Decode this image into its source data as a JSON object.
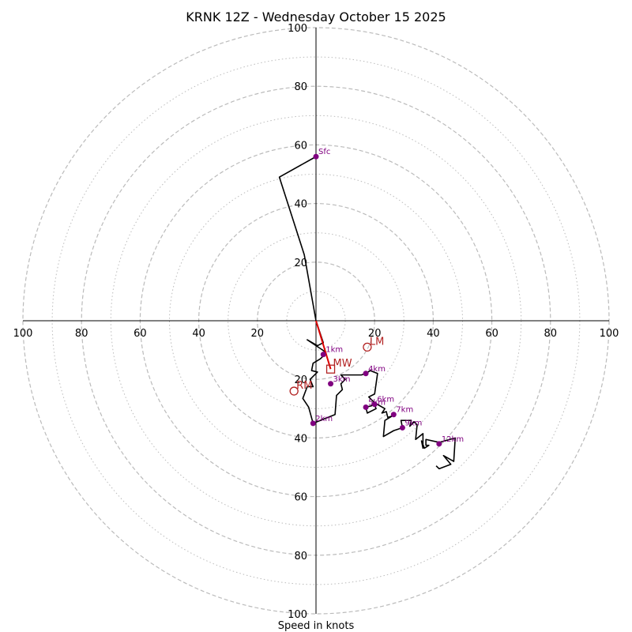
{
  "chart_data": {
    "type": "hodograph",
    "title": "KRNK 12Z - Wednesday October 15 2025",
    "xlabel": "Speed in knots",
    "range_knots": 100,
    "dashed_rings": [
      20,
      40,
      60,
      80,
      100
    ],
    "dotted_rings": [
      10,
      30,
      50,
      70,
      90
    ],
    "tick_labels": {
      "x_left": [
        "100",
        "80",
        "60",
        "40",
        "20"
      ],
      "x_right": [
        "20",
        "40",
        "60",
        "80",
        "100"
      ],
      "y_up": [
        "20",
        "40",
        "60",
        "80",
        "100"
      ],
      "y_down": [
        "20",
        "40",
        "60",
        "80",
        "100"
      ]
    },
    "colors": {
      "trace": "#000000",
      "height_marker": "#800080",
      "motion": "#b22222",
      "mean_wind_vector": "#dd0000",
      "rings": "#bbbbbb"
    },
    "trace": [
      [
        0.0,
        56.0
      ],
      [
        -12.5,
        49.0
      ],
      [
        -4.0,
        22.5
      ],
      [
        0.0,
        0.0
      ],
      [
        2.5,
        -7.5
      ],
      [
        0.5,
        -8.5
      ],
      [
        -3.0,
        -6.5
      ],
      [
        1.5,
        -9.5
      ],
      [
        3.0,
        -10.5
      ],
      [
        2.5,
        -12.0
      ],
      [
        1.5,
        -13.0
      ],
      [
        -1.0,
        -14.5
      ],
      [
        -1.5,
        -17.0
      ],
      [
        0.5,
        -17.5
      ],
      [
        -2.0,
        -20.0
      ],
      [
        -1.0,
        -22.5
      ],
      [
        -3.0,
        -22.5
      ],
      [
        -4.5,
        -26.5
      ],
      [
        -2.5,
        -29.5
      ],
      [
        -1.0,
        -35.0
      ],
      [
        6.5,
        -32.0
      ],
      [
        7.0,
        -25.5
      ],
      [
        9.0,
        -23.5
      ],
      [
        8.5,
        -21.5
      ],
      [
        10.0,
        -20.0
      ],
      [
        8.5,
        -18.5
      ],
      [
        10.5,
        -18.5
      ],
      [
        12.5,
        -18.5
      ],
      [
        15.5,
        -18.5
      ],
      [
        17.0,
        -18.0
      ],
      [
        18.5,
        -17.0
      ],
      [
        21.0,
        -18.0
      ],
      [
        20.0,
        -25.0
      ],
      [
        18.0,
        -26.0
      ],
      [
        19.5,
        -27.5
      ],
      [
        20.5,
        -30.0
      ],
      [
        17.5,
        -31.5
      ],
      [
        17.0,
        -29.5
      ],
      [
        19.0,
        -29.0
      ],
      [
        20.0,
        -28.0
      ],
      [
        23.5,
        -30.0
      ],
      [
        22.5,
        -31.5
      ],
      [
        24.0,
        -31.0
      ],
      [
        24.5,
        -33.0
      ],
      [
        26.0,
        -32.5
      ],
      [
        23.5,
        -34.0
      ],
      [
        23.0,
        -39.5
      ],
      [
        26.5,
        -37.5
      ],
      [
        29.5,
        -36.5
      ],
      [
        29.0,
        -34.0
      ],
      [
        30.5,
        -34.0
      ],
      [
        32.5,
        -34.0
      ],
      [
        32.0,
        -36.0
      ],
      [
        33.5,
        -34.5
      ],
      [
        34.5,
        -35.5
      ],
      [
        34.0,
        -40.5
      ],
      [
        36.5,
        -38.5
      ],
      [
        36.5,
        -43.5
      ],
      [
        36.0,
        -41.0
      ],
      [
        37.0,
        -43.5
      ],
      [
        38.5,
        -42.5
      ],
      [
        37.5,
        -42.5
      ],
      [
        37.5,
        -40.5
      ],
      [
        42.0,
        -41.5
      ],
      [
        47.5,
        -40.0
      ],
      [
        47.0,
        -48.0
      ],
      [
        43.5,
        -46.0
      ],
      [
        46.0,
        -49.0
      ],
      [
        42.0,
        -50.5
      ],
      [
        41.0,
        -49.5
      ]
    ],
    "height_markers": [
      {
        "label": "Sfc",
        "u": 0.0,
        "v": 56.0
      },
      {
        "label": "1km",
        "u": 2.5,
        "v": -11.5
      },
      {
        "label": "2km",
        "u": -1.0,
        "v": -35.0
      },
      {
        "label": "3km",
        "u": 5.0,
        "v": -21.5
      },
      {
        "label": "4km",
        "u": 17.0,
        "v": -18.0
      },
      {
        "label": "5km",
        "u": 17.0,
        "v": -29.5
      },
      {
        "label": "6km",
        "u": 20.0,
        "v": -28.5
      },
      {
        "label": "7km",
        "u": 26.5,
        "v": -32.0
      },
      {
        "label": "9km",
        "u": 29.5,
        "v": -36.5
      },
      {
        "label": "12km",
        "u": 42.0,
        "v": -42.0
      }
    ],
    "storm_motions": [
      {
        "label": "LM",
        "u": 17.5,
        "v": -9.0,
        "marker": "circle"
      },
      {
        "label": "MW",
        "u": 5.0,
        "v": -16.5,
        "marker": "square"
      },
      {
        "label": "RM",
        "u": -7.5,
        "v": -24.0,
        "marker": "circle"
      }
    ],
    "mean_wind_vector": {
      "from": [
        0,
        0
      ],
      "to": [
        5.0,
        -16.5
      ]
    }
  }
}
